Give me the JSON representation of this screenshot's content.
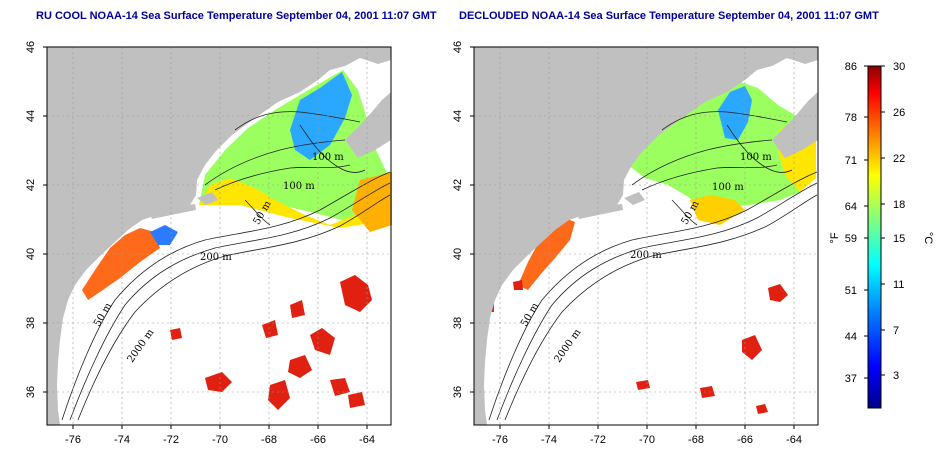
{
  "titles": {
    "left": "RU COOL NOAA-14 Sea Surface Temperature September 04, 2001 11:07 GMT",
    "right": "DECLOUDED NOAA-14 Sea Surface Temperature September 04, 2001 11:07 GMT"
  },
  "axes": {
    "lon_ticks": [
      "-76",
      "-74",
      "-72",
      "-70",
      "-68",
      "-66",
      "-64"
    ],
    "lat_ticks": [
      "46",
      "44",
      "42",
      "40",
      "38",
      "36"
    ]
  },
  "contour_labels": {
    "left": [
      "100 m",
      "100 m",
      "50 m",
      "200 m",
      "50 m",
      "2000 m"
    ],
    "right": [
      "100 m",
      "100 m",
      "50 m",
      "200 m",
      "50 m",
      "2000 m"
    ]
  },
  "colorbar": {
    "f_ticks": [
      "86",
      "78",
      "71",
      "64",
      "59",
      "51",
      "44",
      "37"
    ],
    "c_ticks": [
      "30",
      "26",
      "22",
      "18",
      "15",
      "11",
      "7",
      "3"
    ],
    "f_label": "°F",
    "c_label": "°C",
    "colors": [
      "#00008b",
      "#0000ff",
      "#0080ff",
      "#00ffff",
      "#80ff80",
      "#ffff00",
      "#ff8000",
      "#ff0000",
      "#8b0000"
    ]
  },
  "colors": {
    "land": "#c0c0c0",
    "ocean": "#ffffff",
    "grid": "#999999"
  }
}
